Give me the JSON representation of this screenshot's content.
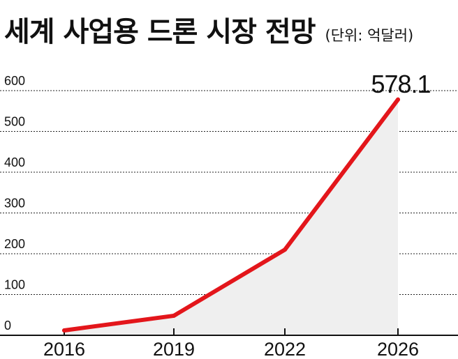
{
  "header": {
    "title": "세계 사업용 드론 시장 전망",
    "unit": "(단위: 억달러)"
  },
  "chart_data": {
    "type": "area",
    "title": "세계 사업용 드론 시장 전망",
    "unit_label": "(단위: 억달러)",
    "xlabel": "",
    "ylabel": "",
    "x": [
      "2016",
      "2019",
      "2022",
      "2026"
    ],
    "series": [
      {
        "values": [
          12,
          48,
          210,
          578.1
        ]
      }
    ],
    "yticks": [
      0,
      100,
      200,
      300,
      400,
      500,
      600
    ],
    "ylim": [
      0,
      630
    ],
    "grid": true,
    "legend": "none",
    "annotations": [
      {
        "x": "2026",
        "text": "578.1"
      }
    ],
    "colors": {
      "line": "#e3161b",
      "fill": "#efefef",
      "grid": "#222222"
    }
  }
}
